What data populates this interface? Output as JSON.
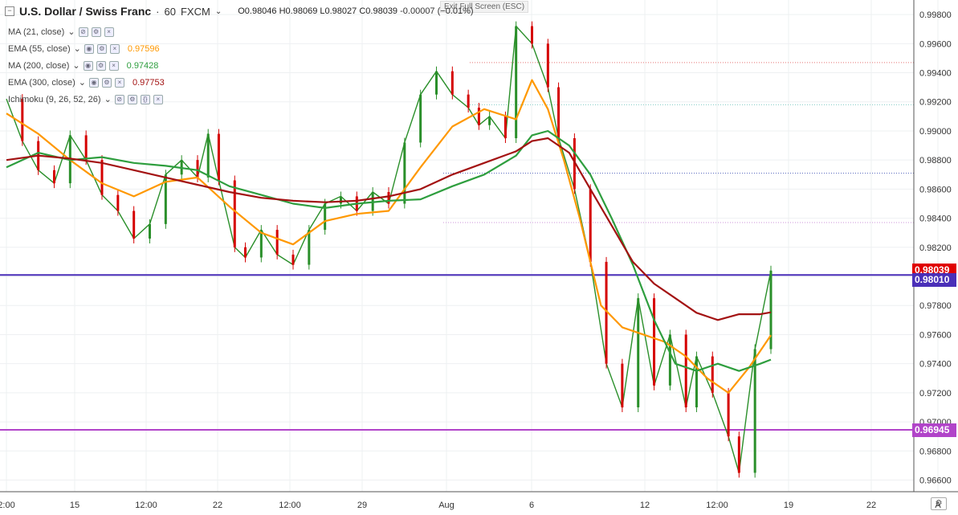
{
  "header": {
    "symbol": "U.S. Dollar / Swiss Franc",
    "interval": "60",
    "exchange": "FXCM",
    "open": "O0.98046",
    "high": "H0.98069",
    "low": "L0.98027",
    "close": "C0.98039",
    "change": "-0.00007 (−0.01%)",
    "exit_fullscreen": "Exit Full Screen (ESC)"
  },
  "indicators": [
    {
      "label": "MA (21, close)",
      "value": "",
      "color": "#1e88e5"
    },
    {
      "label": "EMA (55, close)",
      "value": "0.97596",
      "color": "#ff9800"
    },
    {
      "label": "MA (200, close)",
      "value": "0.97428",
      "color": "#2e9e3e"
    },
    {
      "label": "EMA (300, close)",
      "value": "0.97753",
      "color": "#a31212"
    },
    {
      "label": "Ichimoku (9, 26, 52, 26)",
      "value": "",
      "color": "#1e88e5"
    }
  ],
  "price_labels": {
    "last": {
      "text": "0.98039",
      "color": "#e00000"
    },
    "level_1": {
      "text": "0.98010",
      "color": "#4a2fb8"
    },
    "level_2": {
      "text": "0.96945",
      "color": "#b144c9"
    }
  },
  "chart_data": {
    "type": "line",
    "title": "U.S. Dollar / Swiss Franc · 60 · FXCM",
    "ylim": [
      0.9652,
      0.999
    ],
    "yticks": [
      "0.99800",
      "0.99600",
      "0.99400",
      "0.99200",
      "0.99000",
      "0.98800",
      "0.98600",
      "0.98400",
      "0.98200",
      "0.98000",
      "0.97800",
      "0.97600",
      "0.97400",
      "0.97200",
      "0.97000",
      "0.96800",
      "0.96600"
    ],
    "xticks": [
      "2:00",
      "15",
      "12:00",
      "22",
      "12:00",
      "29",
      "Aug",
      "6",
      "12",
      "12:00",
      "19",
      "22",
      "A"
    ],
    "horizontal_levels": [
      {
        "value": 0.9801,
        "color": "#4a2fb8"
      },
      {
        "value": 0.96945,
        "color": "#b144c9"
      }
    ],
    "dotted_levels": [
      {
        "value": 0.9947,
        "color": "#e57373"
      },
      {
        "value": 0.9918,
        "color": "#80cbc4"
      },
      {
        "value": 0.9871,
        "color": "#5c6bc0"
      },
      {
        "value": 0.9837,
        "color": "#ce93d8"
      }
    ],
    "series": [
      {
        "name": "USD/CHF price",
        "color": "#2a8f2a",
        "x": [
          0,
          3,
          6,
          9,
          12,
          15,
          18,
          21,
          24,
          27,
          30,
          33,
          36,
          38,
          40,
          43,
          45,
          48,
          51,
          54,
          57,
          60,
          63,
          66,
          69,
          72,
          75,
          78,
          81,
          84,
          87,
          89,
          91,
          94,
          96,
          99,
          102,
          104,
          107,
          110,
          113,
          116,
          119,
          122,
          125,
          128,
          130,
          133,
          136,
          138,
          141,
          144
        ],
        "y": [
          0.9922,
          0.9893,
          0.9873,
          0.9864,
          0.9897,
          0.988,
          0.9856,
          0.9845,
          0.9826,
          0.9836,
          0.987,
          0.988,
          0.9868,
          0.9898,
          0.9866,
          0.982,
          0.9813,
          0.9832,
          0.9815,
          0.9808,
          0.9832,
          0.985,
          0.9855,
          0.9845,
          0.9858,
          0.985,
          0.9892,
          0.9925,
          0.9941,
          0.9925,
          0.9916,
          0.9904,
          0.991,
          0.9895,
          0.9972,
          0.996,
          0.993,
          0.9895,
          0.986,
          0.981,
          0.974,
          0.971,
          0.9785,
          0.9725,
          0.976,
          0.971,
          0.9745,
          0.972,
          0.969,
          0.9665,
          0.975,
          0.9804
        ]
      },
      {
        "name": "EMA (55, close)",
        "color": "#ff9800",
        "x": [
          0,
          6,
          12,
          18,
          24,
          30,
          36,
          42,
          48,
          54,
          60,
          66,
          72,
          78,
          84,
          90,
          96,
          99,
          102,
          105,
          108,
          112,
          116,
          120,
          124,
          128,
          132,
          136,
          140,
          144
        ],
        "y": [
          0.9912,
          0.9898,
          0.988,
          0.9864,
          0.9855,
          0.9865,
          0.9868,
          0.9848,
          0.983,
          0.9822,
          0.9838,
          0.9843,
          0.9845,
          0.9875,
          0.9903,
          0.9915,
          0.9908,
          0.9935,
          0.9915,
          0.988,
          0.984,
          0.978,
          0.9765,
          0.976,
          0.9755,
          0.9745,
          0.973,
          0.972,
          0.9738,
          0.97596
        ]
      },
      {
        "name": "MA (200, close)",
        "color": "#2e9e3e",
        "x": [
          0,
          6,
          12,
          18,
          24,
          30,
          36,
          42,
          48,
          54,
          60,
          66,
          72,
          78,
          84,
          90,
          96,
          99,
          102,
          106,
          110,
          114,
          118,
          122,
          126,
          130,
          134,
          138,
          142,
          144
        ],
        "y": [
          0.9875,
          0.9885,
          0.988,
          0.9882,
          0.9878,
          0.9876,
          0.9873,
          0.9862,
          0.9856,
          0.985,
          0.9847,
          0.985,
          0.9852,
          0.9853,
          0.9862,
          0.987,
          0.9883,
          0.9897,
          0.99,
          0.989,
          0.987,
          0.984,
          0.9808,
          0.977,
          0.974,
          0.9735,
          0.974,
          0.9735,
          0.974,
          0.97428
        ]
      },
      {
        "name": "EMA (300, close)",
        "color": "#a31212",
        "x": [
          0,
          6,
          12,
          18,
          24,
          30,
          36,
          42,
          48,
          54,
          60,
          66,
          72,
          78,
          84,
          90,
          96,
          99,
          102,
          106,
          110,
          114,
          118,
          122,
          126,
          130,
          134,
          138,
          142,
          144
        ],
        "y": [
          0.988,
          0.9883,
          0.9881,
          0.9878,
          0.9873,
          0.9868,
          0.9863,
          0.9858,
          0.9854,
          0.9852,
          0.9851,
          0.9852,
          0.9855,
          0.986,
          0.987,
          0.9878,
          0.9886,
          0.9893,
          0.9895,
          0.9885,
          0.986,
          0.9835,
          0.981,
          0.9795,
          0.9785,
          0.9775,
          0.977,
          0.9774,
          0.9774,
          0.97753
        ]
      }
    ]
  }
}
